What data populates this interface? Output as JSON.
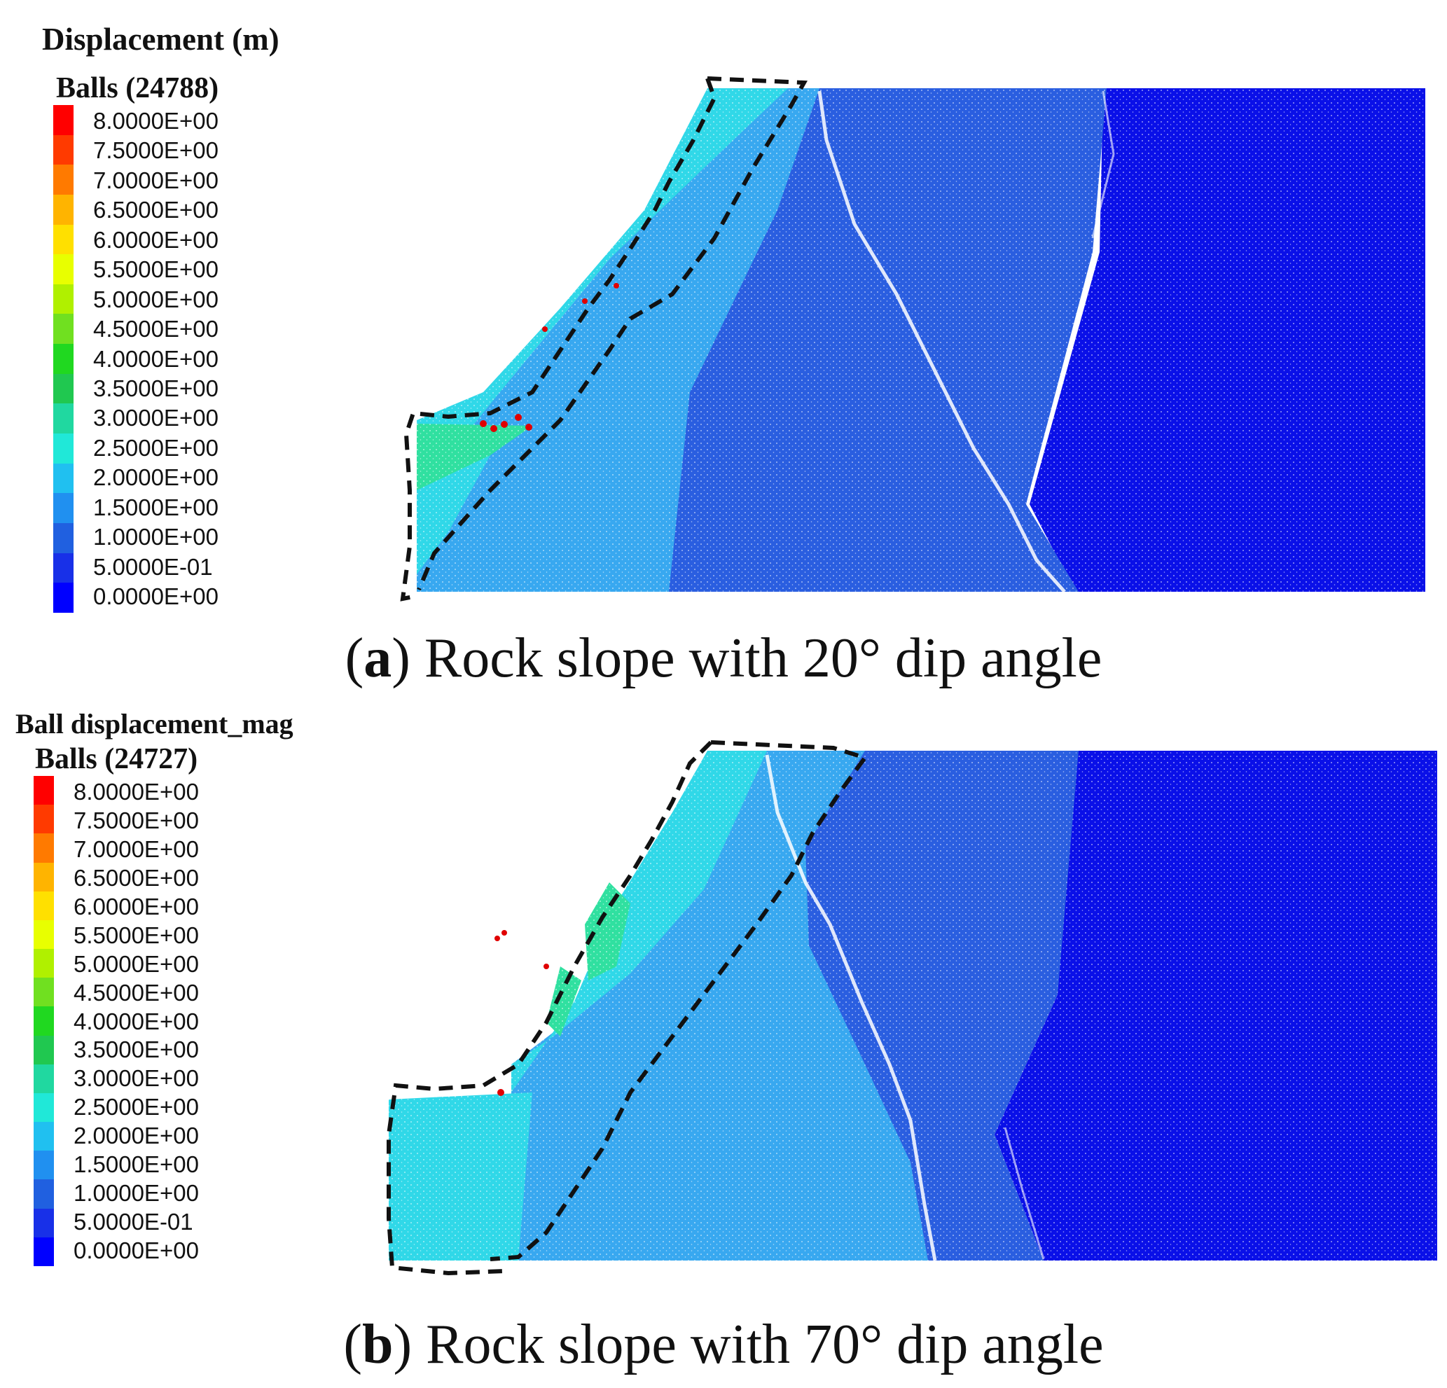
{
  "panels": [
    {
      "id": "a",
      "legend_title": "Displacement (m)",
      "legend_subtitle": "Balls (24788)",
      "caption_letter": "a",
      "caption_text": "Rock slope with 20° dip angle"
    },
    {
      "id": "b",
      "legend_title": "Ball displacement_mag",
      "legend_subtitle": "Balls (24727)",
      "caption_letter": "b",
      "caption_text": "Rock slope with 70° dip angle"
    }
  ],
  "legend_ticks": [
    "8.0000E+00",
    "7.5000E+00",
    "7.0000E+00",
    "6.5000E+00",
    "6.0000E+00",
    "5.5000E+00",
    "5.0000E+00",
    "4.5000E+00",
    "4.0000E+00",
    "3.5000E+00",
    "3.0000E+00",
    "2.5000E+00",
    "2.0000E+00",
    "1.5000E+00",
    "1.0000E+00",
    "5.0000E-01",
    "0.0000E+00"
  ],
  "legend_colors": [
    "#ff0000",
    "#ff3a00",
    "#ff7a00",
    "#ffb400",
    "#ffe000",
    "#e8ff00",
    "#b0f000",
    "#70e020",
    "#20d820",
    "#20c850",
    "#20d8a0",
    "#20e8d8",
    "#20c0f0",
    "#2090f0",
    "#2060e0",
    "#1830e8",
    "#0000ff"
  ],
  "colors": {
    "far_field": "#0a10e8",
    "mid_zone": "#2a5ee0",
    "slope_zone": "#38a8f0",
    "sliding_body": "#30d8e8",
    "toe_green": "#30e0a0",
    "dashed_outline": "#111111"
  }
}
